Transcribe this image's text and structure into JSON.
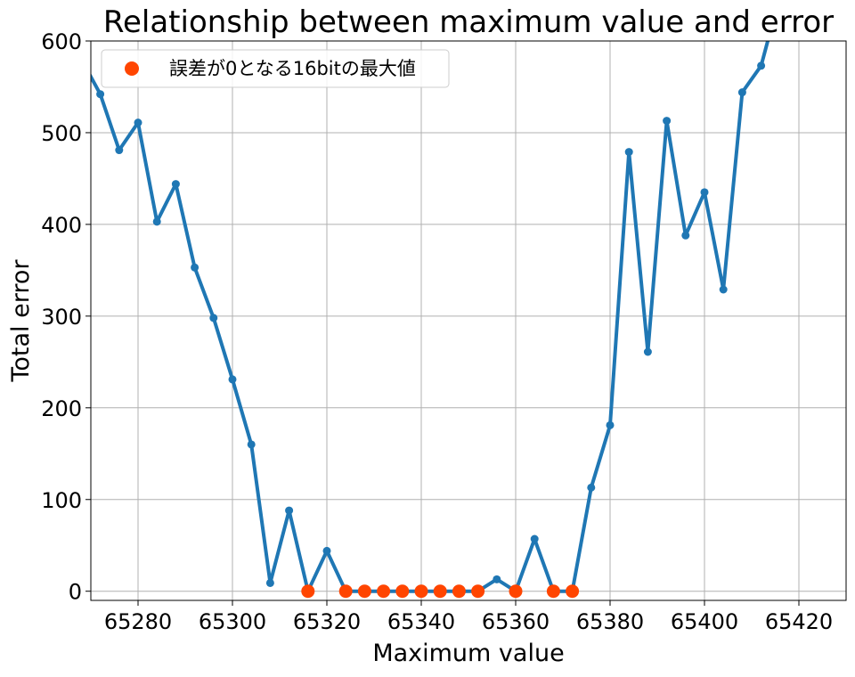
{
  "chart_data": {
    "type": "line",
    "title": "Relationship between maximum value and error",
    "xlabel": "Maximum value",
    "ylabel": "Total error",
    "xlim": [
      65270,
      65430
    ],
    "ylim": [
      -10,
      600
    ],
    "x_ticks": [
      65280,
      65300,
      65320,
      65340,
      65360,
      65380,
      65400,
      65420
    ],
    "y_ticks": [
      0,
      100,
      200,
      300,
      400,
      500,
      600
    ],
    "grid": true,
    "legend_position": "top-left",
    "series": [
      {
        "color": "#1f77b4",
        "x": [
          65268,
          65272,
          65276,
          65280,
          65284,
          65288,
          65292,
          65296,
          65300,
          65304,
          65308,
          65312,
          65316,
          65320,
          65324,
          65328,
          65332,
          65336,
          65340,
          65344,
          65348,
          65352,
          65356,
          65360,
          65364,
          65368,
          65372,
          65376,
          65380,
          65384,
          65388,
          65392,
          65396,
          65400,
          65404,
          65408,
          65412,
          65416
        ],
        "y": [
          580,
          542,
          481,
          511,
          403,
          444,
          353,
          298,
          231,
          160,
          9,
          88,
          0,
          44,
          0,
          0,
          0,
          0,
          0,
          0,
          0,
          0,
          13,
          0,
          57,
          0,
          0,
          113,
          181,
          479,
          261,
          513,
          388,
          435,
          329,
          544,
          573,
          650
        ]
      },
      {
        "name": "誤差が0となる16bitの最大値",
        "color": "#ff4500",
        "marker_only": true,
        "x": [
          65316,
          65324,
          65328,
          65332,
          65336,
          65340,
          65344,
          65348,
          65352,
          65360,
          65368,
          65372
        ],
        "y": [
          0,
          0,
          0,
          0,
          0,
          0,
          0,
          0,
          0,
          0,
          0,
          0
        ]
      }
    ]
  }
}
